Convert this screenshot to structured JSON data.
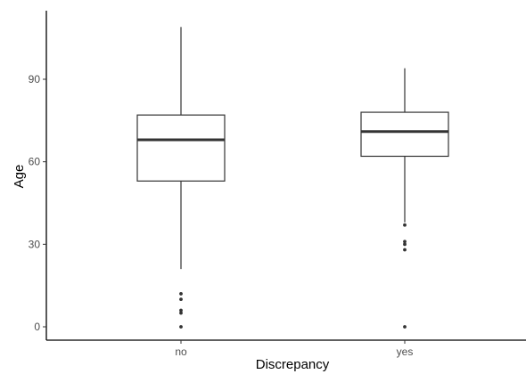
{
  "chart_data": {
    "type": "box",
    "xlabel": "Discrepancy",
    "ylabel": "Age",
    "categories": [
      "no",
      "yes"
    ],
    "ylim": [
      -5,
      115
    ],
    "y_ticks": [
      0,
      30,
      60,
      90
    ],
    "grid": false,
    "legend": "none",
    "boxes": [
      {
        "category": "no",
        "whisker_low": 21,
        "q1": 53,
        "median": 68,
        "q3": 77,
        "whisker_high": 109,
        "outliers": [
          0,
          5,
          6,
          10,
          12
        ]
      },
      {
        "category": "yes",
        "whisker_low": 38,
        "q1": 62,
        "median": 71,
        "q3": 78,
        "whisker_high": 94,
        "outliers": [
          0,
          28,
          30,
          31,
          37
        ]
      }
    ]
  }
}
